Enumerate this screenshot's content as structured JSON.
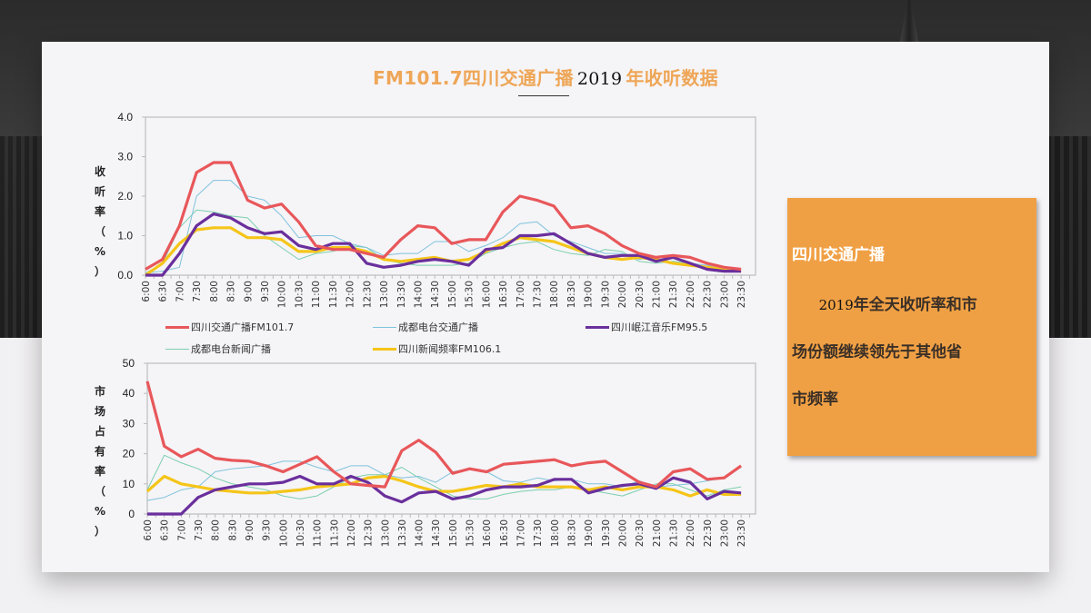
{
  "title": {
    "prefix": "FM101.7四川交通广播",
    "year": "2019",
    "suffix": "年收听数据"
  },
  "note": {
    "heading": "四川交通广播",
    "year": "2019",
    "body_line1": "年全天收听率和市",
    "body_line2": "场份额继续领先于其他省",
    "body_line3": "市频率"
  },
  "colors": {
    "title": "#eea657",
    "note_bg": "#f0a044",
    "series": [
      "#e8575a",
      "#7fc3dc",
      "#6a2f9c",
      "#7bcfad",
      "#f5c518"
    ]
  },
  "chart_data": [
    {
      "type": "line",
      "title": "",
      "xlabel": "",
      "ylabel": "收听率（%）",
      "ylim": [
        0,
        4.0
      ],
      "yticks": [
        "0.0",
        "1.0",
        "2.0",
        "3.0",
        "4.0"
      ],
      "grid": false,
      "legend_position": "bottom",
      "categories": [
        "6:00",
        "6:30",
        "7:00",
        "7:30",
        "8:00",
        "8:30",
        "9:00",
        "9:30",
        "10:00",
        "10:30",
        "11:00",
        "11:30",
        "12:00",
        "12:30",
        "13:00",
        "13:30",
        "14:00",
        "14:30",
        "15:00",
        "15:30",
        "16:00",
        "16:30",
        "17:00",
        "17:30",
        "18:00",
        "18:30",
        "19:00",
        "19:30",
        "20:00",
        "20:30",
        "21:00",
        "21:30",
        "22:00",
        "22:30",
        "23:00",
        "23:30"
      ],
      "series": [
        {
          "name": "四川交通广播FM101.7",
          "values": [
            0.15,
            0.4,
            1.25,
            2.6,
            2.85,
            2.85,
            1.9,
            1.7,
            1.8,
            1.35,
            0.75,
            0.65,
            0.65,
            0.55,
            0.45,
            0.9,
            1.25,
            1.2,
            0.8,
            0.9,
            0.9,
            1.6,
            2.0,
            1.9,
            1.75,
            1.2,
            1.25,
            1.05,
            0.75,
            0.55,
            0.45,
            0.5,
            0.45,
            0.3,
            0.2,
            0.15
          ]
        },
        {
          "name": "成都电台交通广播",
          "values": [
            0.05,
            0.1,
            0.2,
            2.0,
            2.4,
            2.4,
            2.0,
            1.9,
            1.5,
            0.95,
            1.0,
            1.0,
            0.8,
            0.7,
            0.5,
            0.55,
            0.55,
            0.85,
            0.85,
            0.6,
            0.75,
            0.95,
            1.3,
            1.35,
            1.0,
            0.85,
            0.7,
            0.55,
            0.55,
            0.4,
            0.45,
            0.45,
            0.3,
            0.25,
            0.15,
            0.1
          ]
        },
        {
          "name": "四川岷江音乐FM95.5",
          "values": [
            0.0,
            0.0,
            0.55,
            1.25,
            1.55,
            1.45,
            1.2,
            1.05,
            1.1,
            0.75,
            0.65,
            0.8,
            0.8,
            0.3,
            0.2,
            0.25,
            0.35,
            0.4,
            0.35,
            0.25,
            0.65,
            0.7,
            1.0,
            1.0,
            1.05,
            0.8,
            0.55,
            0.45,
            0.5,
            0.5,
            0.35,
            0.45,
            0.3,
            0.15,
            0.1,
            0.1
          ]
        },
        {
          "name": "成都电台新闻广播",
          "values": [
            0.05,
            0.3,
            1.2,
            1.65,
            1.6,
            1.5,
            1.45,
            1.0,
            0.7,
            0.4,
            0.55,
            0.6,
            0.75,
            0.7,
            0.4,
            0.3,
            0.25,
            0.25,
            0.25,
            0.3,
            0.55,
            0.7,
            0.8,
            0.85,
            0.65,
            0.55,
            0.5,
            0.65,
            0.6,
            0.35,
            0.3,
            0.35,
            0.3,
            0.2,
            0.15,
            0.1
          ]
        },
        {
          "name": "四川新闻频率FM106.1",
          "values": [
            0.0,
            0.3,
            0.8,
            1.15,
            1.2,
            1.2,
            0.95,
            0.95,
            0.9,
            0.6,
            0.6,
            0.7,
            0.7,
            0.6,
            0.4,
            0.35,
            0.4,
            0.45,
            0.35,
            0.4,
            0.6,
            0.8,
            0.95,
            0.9,
            0.85,
            0.7,
            0.55,
            0.45,
            0.4,
            0.45,
            0.4,
            0.3,
            0.25,
            0.2,
            0.15,
            0.1
          ]
        }
      ]
    },
    {
      "type": "line",
      "title": "",
      "xlabel": "",
      "ylabel": "市场占有率（%）",
      "ylim": [
        0,
        50
      ],
      "yticks": [
        "0",
        "10",
        "20",
        "30",
        "40",
        "50"
      ],
      "grid": false,
      "legend_position": "none",
      "categories": [
        "6:00",
        "6:30",
        "7:00",
        "7:30",
        "8:00",
        "8:30",
        "9:00",
        "9:30",
        "10:00",
        "10:30",
        "11:00",
        "11:30",
        "12:00",
        "12:30",
        "13:00",
        "13:30",
        "14:00",
        "14:30",
        "15:00",
        "15:30",
        "16:00",
        "16:30",
        "17:00",
        "17:30",
        "18:00",
        "18:30",
        "19:00",
        "19:30",
        "20:00",
        "20:30",
        "21:00",
        "21:30",
        "22:00",
        "22:30",
        "23:00",
        "23:30"
      ],
      "series": [
        {
          "name": "四川交通广播FM101.7",
          "values": [
            44,
            22.5,
            19,
            21.5,
            18.5,
            17.8,
            17.5,
            16,
            14,
            16.5,
            19,
            14,
            10,
            9.5,
            9,
            21,
            24.5,
            20.5,
            13.5,
            15,
            14,
            16.5,
            17,
            17.5,
            18,
            16,
            17,
            17.5,
            14,
            10.5,
            9,
            14,
            15,
            11.5,
            12,
            16
          ]
        },
        {
          "name": "成都电台交通广播",
          "values": [
            4.5,
            5.5,
            8,
            9,
            14,
            15,
            15.5,
            16,
            17.5,
            17.5,
            15.5,
            14,
            16,
            16,
            13,
            12,
            12.5,
            10.5,
            14,
            15,
            14,
            11,
            10.5,
            12,
            11,
            11.5,
            10,
            10,
            9,
            11,
            9,
            9.5,
            10,
            11,
            12,
            15.5
          ]
        },
        {
          "name": "四川岷江音乐FM95.5",
          "values": [
            0,
            0,
            0,
            5.5,
            8,
            9,
            10,
            10,
            10.5,
            12.5,
            10,
            10,
            12.5,
            10.5,
            6,
            4,
            7,
            7.5,
            5,
            6,
            8,
            9,
            9,
            9.5,
            11.5,
            11.5,
            7,
            8.5,
            9.5,
            10,
            8.5,
            12,
            10.5,
            5,
            7.5,
            7
          ]
        },
        {
          "name": "成都电台新闻广播",
          "values": [
            8,
            19.5,
            17,
            15,
            12,
            10,
            9,
            8,
            6,
            5,
            6,
            9,
            12,
            13,
            13,
            15.5,
            12,
            9,
            6,
            5,
            5,
            6.5,
            7.5,
            8,
            8,
            9,
            8,
            7,
            6,
            8,
            10,
            10,
            8,
            6,
            8,
            9
          ]
        },
        {
          "name": "四川新闻频率FM106.1",
          "values": [
            7.5,
            12.5,
            10,
            9,
            8,
            7.5,
            7,
            7,
            7.5,
            8,
            9,
            9.5,
            10,
            12,
            12.5,
            11,
            9,
            7.5,
            7.5,
            8.5,
            9.5,
            9,
            10,
            9,
            9,
            9,
            8,
            9,
            8,
            9,
            9,
            8,
            6,
            8,
            6.5,
            6.5
          ]
        }
      ]
    }
  ],
  "x_labels": [
    "6:00",
    "6:30",
    "7:00",
    "7:30",
    "8:00",
    "8:30",
    "9:00",
    "9:30",
    "10:00",
    "10:30",
    "11:00",
    "11:30",
    "12:00",
    "12:30",
    "13:00",
    "13:30",
    "14:00",
    "14:30",
    "15:00",
    "15:30",
    "16:00",
    "16:30",
    "17:00",
    "17:30",
    "18:00",
    "18:30",
    "19:00",
    "19:30",
    "20:00",
    "20:30",
    "21:00",
    "21:30",
    "22:00",
    "22:30",
    "23:00",
    "23:30"
  ],
  "legend": [
    {
      "label": "四川交通广播FM101.7",
      "color": "#e8575a",
      "thick": true
    },
    {
      "label": "成都电台交通广播",
      "color": "#7fc3dc",
      "thick": false
    },
    {
      "label": "四川岷江音乐FM95.5",
      "color": "#6a2f9c",
      "thick": true
    },
    {
      "label": "成都电台新闻广播",
      "color": "#7bcfad",
      "thick": false
    },
    {
      "label": "四川新闻频率FM106.1",
      "color": "#f5c518",
      "thick": true
    }
  ],
  "axis_labels": {
    "top_y": [
      "收",
      "听",
      "率",
      "（",
      "%",
      "）"
    ],
    "bottom_y": [
      "市",
      "场",
      "占",
      "有",
      "率",
      "（",
      "%",
      "）"
    ]
  }
}
